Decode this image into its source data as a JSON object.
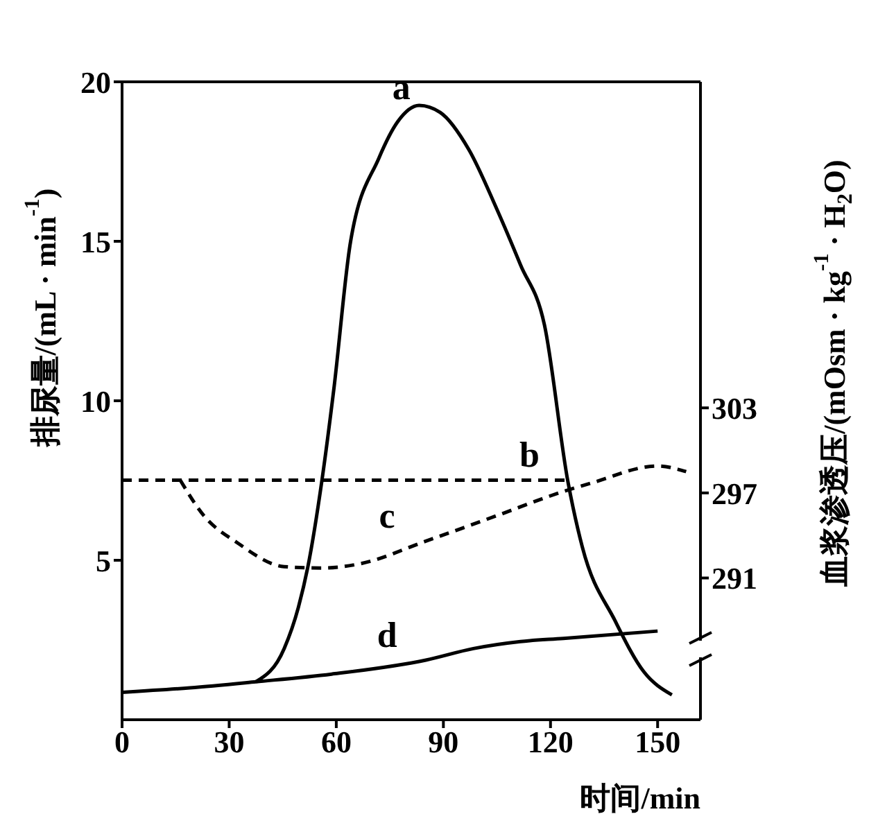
{
  "chart_data": {
    "type": "line",
    "xlabel": "时间/min",
    "ylabel": "排尿量/(mL · min$^{-1}$)",
    "y2label": "血浆渗透压/(mOsm · kg$^{-1}$ · H$_{2}$O)",
    "xlim": [
      0,
      162
    ],
    "xticks": [
      0,
      30,
      60,
      90,
      120,
      150
    ],
    "ylim": [
      0,
      20
    ],
    "yticks": [
      5,
      10,
      15,
      20
    ],
    "y2lim": [
      281,
      326
    ],
    "y2ticks": [
      291,
      297,
      303
    ],
    "marker": "none",
    "series": [
      {
        "name": "a",
        "color": "#000000",
        "line_style": "solid",
        "x": [
          37.5,
          45.4,
          49.4,
          52,
          56,
          59.3,
          64,
          71.9,
          77.2,
          83.2,
          89.1,
          97.1,
          105,
          111.6,
          118.3,
          124.9,
          128.9,
          138.1,
          146.1,
          154
        ],
        "values": [
          1.19,
          2.23,
          3.53,
          4.77,
          7.52,
          10.35,
          14.99,
          17.6,
          18.75,
          19.26,
          19.04,
          17.88,
          16.0,
          14.26,
          12.38,
          7.45,
          5.42,
          3.1,
          1.51,
          0.78
        ]
      },
      {
        "name": "b",
        "color": "#000000",
        "line_style": "dashed",
        "axis": "y2",
        "x": [
          0,
          125
        ],
        "values": [
          297.9,
          297.9
        ]
      },
      {
        "name": "c",
        "color": "#000000",
        "line_style": "dashed",
        "axis": "y2",
        "x": [
          16.3,
          22.9,
          32.2,
          45.4,
          56,
          66.6,
          85.1,
          105,
          123.6,
          131.5,
          150,
          158
        ],
        "values": [
          297.9,
          295.4,
          293.5,
          291.8,
          291.7,
          292.0,
          293.6,
          295.4,
          297.1,
          297.7,
          298.9,
          298.5
        ]
      },
      {
        "name": "d",
        "color": "#000000",
        "line_style": "solid",
        "x": [
          0,
          19,
          37.5,
          58.7,
          85.1,
          98.4,
          111.6,
          123.6,
          150
        ],
        "values": [
          0.86,
          1.0,
          1.19,
          1.43,
          1.87,
          2.23,
          2.45,
          2.55,
          2.78
        ]
      }
    ]
  }
}
